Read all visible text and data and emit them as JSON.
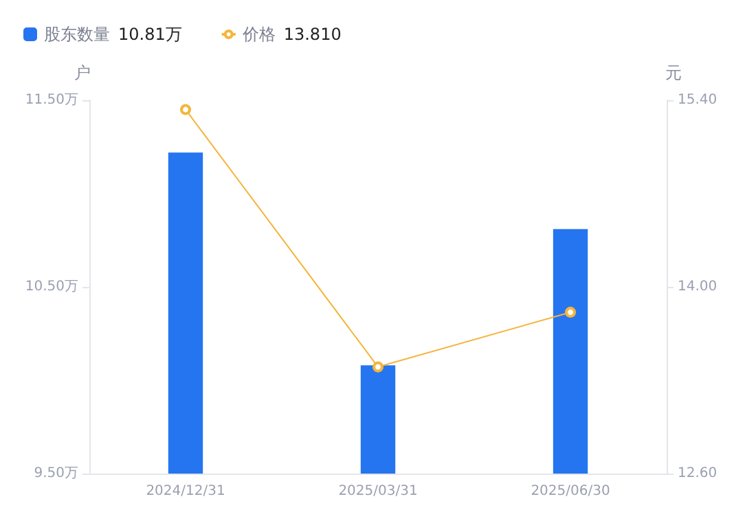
{
  "chart_data": {
    "type": "bar",
    "ylabel": "户",
    "y2label": "元",
    "categories": [
      "2024/12/31",
      "2025/03/31",
      "2025/06/30"
    ],
    "series": [
      {
        "name": "股东数量",
        "color": "#2575f0",
        "values": [
          11.22,
          10.08,
          10.81
        ]
      },
      {
        "name": "价格",
        "type": "line",
        "axis": "y2",
        "color": "#f5b53c",
        "values": [
          15.33,
          13.4,
          13.81
        ]
      }
    ],
    "annotations": [
      "10.81万",
      "13.810"
    ],
    "ylim": [
      9.5,
      11.5
    ],
    "yticks": [
      {
        "value": 9.5,
        "label": "9.50万"
      },
      {
        "value": 10.5,
        "label": "10.50万"
      },
      {
        "value": 11.5,
        "label": "11.50万"
      }
    ],
    "y2lim": [
      12.6,
      15.4
    ],
    "y2ticks": [
      {
        "value": 12.6,
        "label": "12.60"
      },
      {
        "value": 14,
        "label": "14.00"
      },
      {
        "value": 15.4,
        "label": "15.40"
      }
    ],
    "legend": "top left",
    "marker": "circle",
    "grid": false
  }
}
